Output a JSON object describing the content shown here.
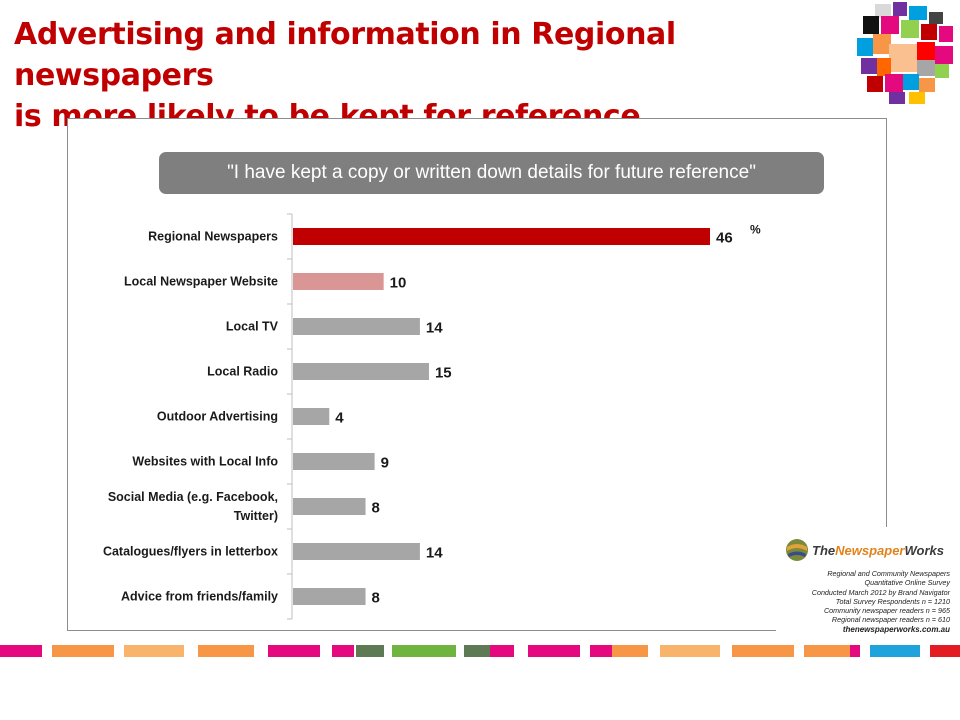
{
  "header": {
    "title_line1": "Advertising and information in Regional newspapers",
    "title_line2": "is more likely to be kept for reference"
  },
  "banner": {
    "quote": "\"I have kept a copy or written down details for future reference\""
  },
  "chart_data": {
    "type": "bar",
    "orientation": "horizontal",
    "unit_label": "%",
    "categories": [
      "Regional Newspapers",
      "Local Newspaper Website",
      "Local TV",
      "Local Radio",
      "Outdoor Advertising",
      "Websites with Local Info",
      "Social Media (e.g. Facebook, Twitter)",
      "Catalogues/flyers in letterbox",
      "Advice from friends/family"
    ],
    "values": [
      46,
      10,
      14,
      15,
      4,
      9,
      8,
      14,
      8
    ],
    "colors": [
      "#c00000",
      "#da9694",
      "#a6a6a6",
      "#a6a6a6",
      "#a6a6a6",
      "#a6a6a6",
      "#a6a6a6",
      "#a6a6a6",
      "#a6a6a6"
    ],
    "xlim": [
      0,
      50
    ],
    "grid": false,
    "legend": "none"
  },
  "credits": {
    "brand_prefix": "The",
    "brand_highlight": "Newspaper",
    "brand_suffix": "Works",
    "lines": [
      "Regional and Community Newspapers",
      "Quantitative Online Survey",
      "Conducted March 2012 by Brand Navigator",
      "Total Survey Respondents n = 1210",
      "Community newspaper readers n = 965",
      "Regional newspaper readers n = 610"
    ],
    "url": "thenewspaperworks.com.au"
  },
  "colors": {
    "title_red": "#c00000",
    "banner_gray": "#7f7f7f",
    "bar_gray": "#a6a6a6"
  }
}
